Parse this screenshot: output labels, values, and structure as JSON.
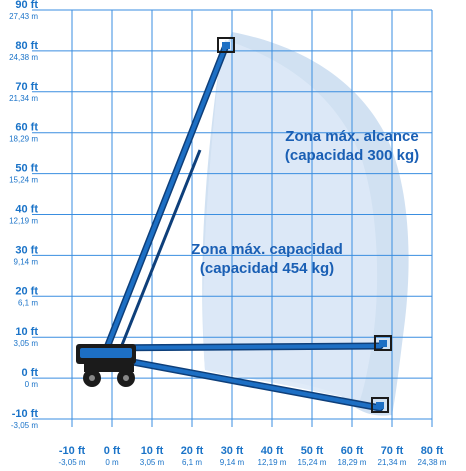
{
  "y_axis": [
    {
      "ft": "90 ft",
      "m": "27,43 m"
    },
    {
      "ft": "80 ft",
      "m": "24,38 m"
    },
    {
      "ft": "70 ft",
      "m": "21,34 m"
    },
    {
      "ft": "60 ft",
      "m": "18,29 m"
    },
    {
      "ft": "50 ft",
      "m": "15,24 m"
    },
    {
      "ft": "40 ft",
      "m": "12,19 m"
    },
    {
      "ft": "30 ft",
      "m": "9,14 m"
    },
    {
      "ft": "20 ft",
      "m": "6,1 m"
    },
    {
      "ft": "10 ft",
      "m": "3,05 m"
    },
    {
      "ft": "0 ft",
      "m": "0 m"
    },
    {
      "ft": "-10 ft",
      "m": "-3,05 m"
    }
  ],
  "x_axis": [
    {
      "ft": "-10 ft",
      "m": "-3,05 m"
    },
    {
      "ft": "0 ft",
      "m": "0 m"
    },
    {
      "ft": "10 ft",
      "m": "3,05 m"
    },
    {
      "ft": "20 ft",
      "m": "6,1 m"
    },
    {
      "ft": "30 ft",
      "m": "9,14 m"
    },
    {
      "ft": "40 ft",
      "m": "12,19 m"
    },
    {
      "ft": "50 ft",
      "m": "15,24 m"
    },
    {
      "ft": "60 ft",
      "m": "18,29 m"
    },
    {
      "ft": "70 ft",
      "m": "21,34 m"
    },
    {
      "ft": "80 ft",
      "m": "24,38 m"
    }
  ],
  "zones": {
    "max_reach_line1": "Zona máx. alcance",
    "max_reach_line2": "(capacidad 300 kg)",
    "max_capacity_line1": "Zona máx. capacidad",
    "max_capacity_line2": "(capacidad 454 kg)"
  },
  "colors": {
    "grid": "#3a8ee0",
    "label": "#1a73c8",
    "zone_outer": "#c9dcf0",
    "zone_inner": "#dde9f7",
    "boom": "#1d6fc4",
    "boom_dark": "#0e3f7a",
    "machine": "#1b1b1b"
  }
}
